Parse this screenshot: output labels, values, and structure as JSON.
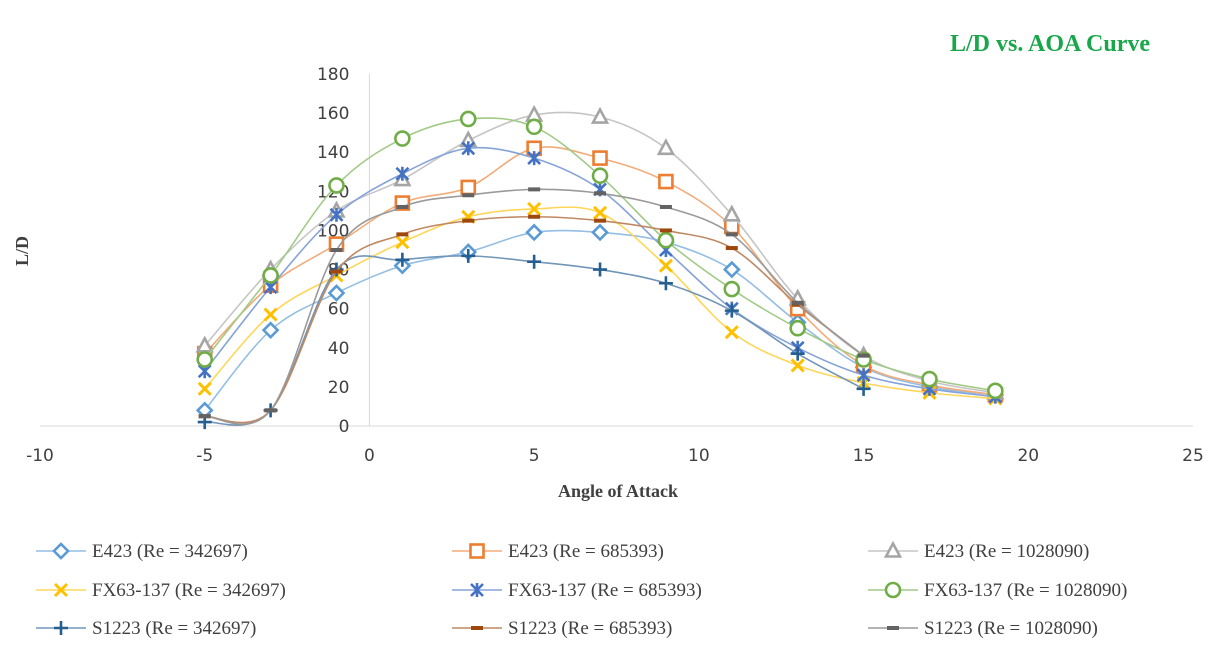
{
  "chart_data": {
    "type": "scatter",
    "title": "L/D vs. AOA Curve",
    "xlabel": "Angle of Attack",
    "ylabel": "L/D",
    "xlim": [
      -10,
      25
    ],
    "ylim": [
      0,
      180
    ],
    "xticks": [
      -10,
      -5,
      0,
      5,
      10,
      15,
      20,
      25
    ],
    "yticks": [
      0,
      20,
      40,
      60,
      80,
      100,
      120,
      140,
      160,
      180
    ],
    "grid": false,
    "legend_position": "bottom",
    "series": [
      {
        "name": "E423 (Re = 342697)",
        "color": "#5b9bd5",
        "marker": "diamond",
        "x": [
          -5,
          -3,
          -1,
          1,
          3,
          5,
          7,
          9,
          11,
          13,
          15,
          17,
          19
        ],
        "y": [
          8,
          49,
          68,
          82,
          89,
          99,
          99,
          94,
          80,
          53,
          30,
          20,
          16
        ]
      },
      {
        "name": "E423 (Re = 685393)",
        "color": "#ed7d31",
        "marker": "square",
        "x": [
          -5,
          -3,
          -1,
          1,
          3,
          5,
          7,
          9,
          11,
          13,
          15,
          17,
          19
        ],
        "y": [
          37,
          72,
          93,
          114,
          122,
          142,
          137,
          125,
          102,
          60,
          31,
          21,
          16
        ]
      },
      {
        "name": "E423 (Re = 1028090)",
        "color": "#a5a5a5",
        "marker": "triangle",
        "x": [
          -5,
          -3,
          -1,
          1,
          3,
          5,
          7,
          9,
          11,
          13,
          15,
          17,
          19
        ],
        "y": [
          41,
          80,
          110,
          126,
          146,
          159,
          158,
          142,
          108,
          65,
          36,
          23,
          17
        ]
      },
      {
        "name": "FX63-137 (Re = 342697)",
        "color": "#ffc000",
        "marker": "x",
        "x": [
          -5,
          -3,
          -1,
          1,
          3,
          5,
          7,
          9,
          11,
          13,
          15,
          17,
          19
        ],
        "y": [
          19,
          57,
          77,
          94,
          107,
          111,
          109,
          82,
          48,
          31,
          22,
          17,
          14
        ]
      },
      {
        "name": "FX63-137 (Re = 685393)",
        "color": "#4472c4",
        "marker": "asterisk",
        "x": [
          -5,
          -3,
          -1,
          1,
          3,
          5,
          7,
          9,
          11,
          13,
          15,
          17,
          19
        ],
        "y": [
          28,
          71,
          108,
          129,
          142,
          137,
          121,
          90,
          60,
          40,
          26,
          19,
          15
        ]
      },
      {
        "name": "FX63-137 (Re = 1028090)",
        "color": "#70ad47",
        "marker": "circle",
        "x": [
          -5,
          -3,
          -1,
          1,
          3,
          5,
          7,
          9,
          11,
          13,
          15,
          17,
          19
        ],
        "y": [
          34,
          77,
          123,
          147,
          157,
          153,
          128,
          95,
          70,
          50,
          34,
          24,
          18
        ]
      },
      {
        "name": "S1223 (Re = 342697)",
        "color": "#255e91",
        "marker": "plus",
        "x": [
          -5,
          -3,
          -1,
          1,
          3,
          5,
          7,
          9,
          11,
          13,
          15
        ],
        "y": [
          2,
          8,
          80,
          85,
          87,
          84,
          80,
          73,
          59,
          37,
          19
        ]
      },
      {
        "name": "S1223 (Re = 685393)",
        "color": "#9e480e",
        "marker": "dash",
        "x": [
          -5,
          -3,
          -1,
          1,
          3,
          5,
          7,
          9,
          11,
          13,
          15
        ],
        "y": [
          5,
          8,
          79,
          98,
          105,
          107,
          105,
          100,
          91,
          62,
          36
        ]
      },
      {
        "name": "S1223 (Re = 1028090)",
        "color": "#636363",
        "marker": "dash",
        "x": [
          -5,
          -3,
          -1,
          1,
          3,
          5,
          7,
          9,
          11,
          13,
          15
        ],
        "y": [
          5,
          8,
          90,
          112,
          118,
          121,
          119,
          112,
          98,
          63,
          36
        ]
      }
    ]
  }
}
